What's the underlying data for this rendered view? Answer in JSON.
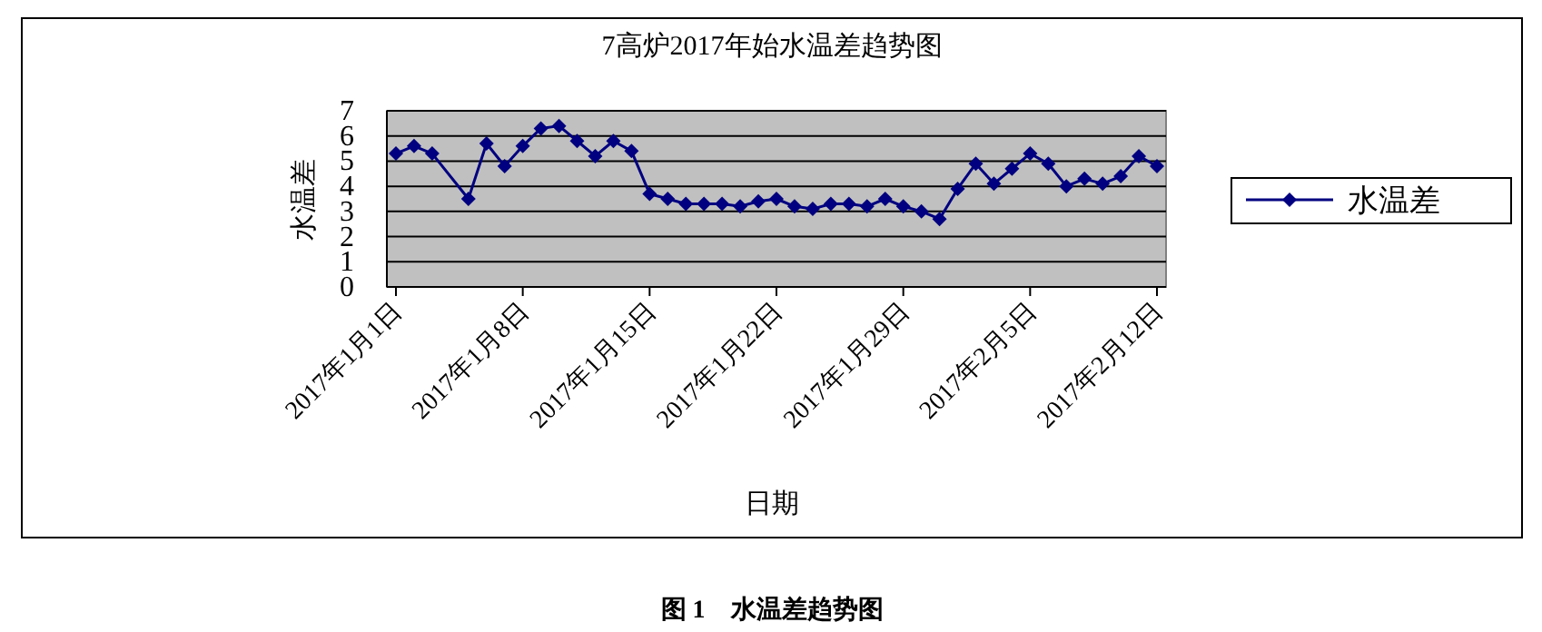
{
  "chart_data": {
    "type": "line",
    "title": "7高炉2017年始水温差趋势图",
    "xlabel": "日期",
    "ylabel": "水温差",
    "annotations": [
      "图 1　水温差趋势图"
    ],
    "x": [
      "2017-01-01",
      "2017-01-02",
      "2017-01-03",
      "2017-01-05",
      "2017-01-06",
      "2017-01-07",
      "2017-01-08",
      "2017-01-09",
      "2017-01-10",
      "2017-01-11",
      "2017-01-12",
      "2017-01-13",
      "2017-01-14",
      "2017-01-15",
      "2017-01-16",
      "2017-01-17",
      "2017-01-18",
      "2017-01-19",
      "2017-01-20",
      "2017-01-21",
      "2017-01-22",
      "2017-01-23",
      "2017-01-24",
      "2017-01-25",
      "2017-01-26",
      "2017-01-27",
      "2017-01-28",
      "2017-01-29",
      "2017-01-30",
      "2017-01-31",
      "2017-02-01",
      "2017-02-02",
      "2017-02-03",
      "2017-02-04",
      "2017-02-05",
      "2017-02-06",
      "2017-02-07",
      "2017-02-08",
      "2017-02-09",
      "2017-02-10",
      "2017-02-11",
      "2017-02-12"
    ],
    "series": [
      {
        "name": "水温差",
        "color": "#000080",
        "values": [
          5.3,
          5.6,
          5.3,
          3.5,
          5.7,
          4.8,
          5.6,
          6.3,
          6.4,
          5.8,
          5.2,
          5.8,
          5.4,
          3.7,
          3.5,
          3.3,
          3.3,
          3.3,
          3.2,
          3.4,
          3.5,
          3.2,
          3.1,
          3.3,
          3.3,
          3.2,
          3.5,
          3.2,
          3.0,
          2.7,
          3.9,
          4.9,
          4.1,
          4.7,
          5.3,
          4.9,
          4.0,
          4.3,
          4.1,
          4.4,
          5.2,
          4.8
        ]
      }
    ],
    "xlim": [
      "2016-12-31T12:00",
      "2017-02-12T12:00"
    ],
    "xticks": [
      {
        "value": "2017-01-01",
        "label": "2017年1月1日"
      },
      {
        "value": "2017-01-08",
        "label": "2017年1月8日"
      },
      {
        "value": "2017-01-15",
        "label": "2017年1月15日"
      },
      {
        "value": "2017-01-22",
        "label": "2017年1月22日"
      },
      {
        "value": "2017-01-29",
        "label": "2017年1月29日"
      },
      {
        "value": "2017-02-05",
        "label": "2017年2月5日"
      },
      {
        "value": "2017-02-12",
        "label": "2017年2月12日"
      }
    ],
    "ylim": [
      0,
      7
    ],
    "yticks": [
      0,
      1,
      2,
      3,
      4,
      5,
      6,
      7
    ],
    "grid": "y",
    "legend": "right",
    "marker": "diamond",
    "line_style": "solid"
  }
}
